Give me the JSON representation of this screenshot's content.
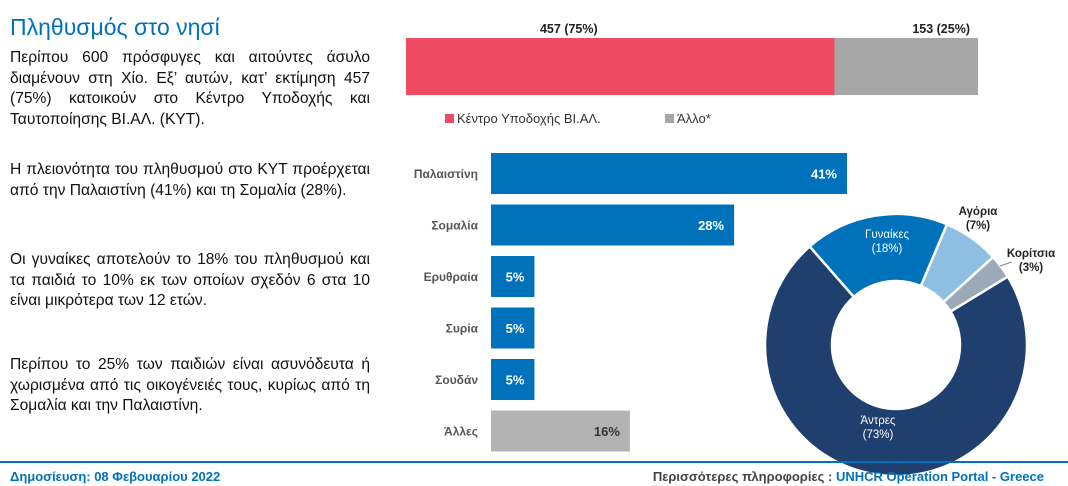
{
  "title": "Πληθυσμός στο νησί",
  "paragraphs": [
    "Περίπου 600 πρόσφυγες και αιτούντες άσυλο διαμένουν στη Χίο. Εξ’ αυτών, κατ’ εκτίμηση 457 (75%) κατοικούν στο Κέντρο Υποδοχής και Ταυτοποίησης ΒΙ.ΑΛ. (ΚΥΤ).",
    "Η πλειονότητα του πληθυσμού στο ΚΥΤ προέρχεται από την Παλαιστίνη (41%) και τη Σομαλία (28%).",
    "Οι γυναίκες αποτελούν το 18% του πληθυσμού και τα παιδιά το 10% εκ των οποίων σχεδόν 6 στα 10 είναι μικρότερα των 12 ετών.",
    "Περίπου το 25% των παιδιών είναι ασυνόδευτα ή χωρισμένα από τις οικογένειές τους, κυρίως από τη Σομαλία και την Παλαιστίνη."
  ],
  "footer": {
    "published": "Δημοσίευση: 08 Φεβουαρίου 2022",
    "more_info_label": "Περισσότερες πληροφορίες : ",
    "more_info_link": "UNHCR Operation Portal - Greece"
  },
  "chart_data": [
    {
      "type": "bar",
      "orientation": "horizontal-stacked",
      "title": "",
      "series": [
        {
          "name": "Κέντρο Υποδοχής ΒΙ.ΑΛ.",
          "value": 457,
          "percent": 75,
          "label": "457  (75%)",
          "color": "#ef4b62"
        },
        {
          "name": "Άλλο*",
          "value": 153,
          "percent": 25,
          "label": "153  (25%)",
          "color": "#a7a7a7"
        }
      ],
      "legend": [
        "Κέντρο Υποδοχής ΒΙ.ΑΛ.",
        "Άλλο*"
      ]
    },
    {
      "type": "bar",
      "orientation": "horizontal",
      "title": "",
      "categories": [
        "Παλαιστίνη",
        "Σομαλία",
        "Ερυθραία",
        "Συρία",
        "Σουδάν",
        "Άλλες"
      ],
      "values": [
        41,
        28,
        5,
        5,
        5,
        16
      ],
      "labels": [
        "41%",
        "28%",
        "5%",
        "5%",
        "5%",
        "16%"
      ],
      "colors": [
        "#0072bc",
        "#0072bc",
        "#0072bc",
        "#0072bc",
        "#0072bc",
        "#b3b3b3"
      ],
      "unit": "%"
    },
    {
      "type": "pie",
      "style": "donut",
      "slices": [
        {
          "name": "Γυναίκες",
          "value": 18,
          "label": "(18%)",
          "color": "#0072bc"
        },
        {
          "name": "Αγόρια",
          "value": 7,
          "label": "(7%)",
          "color": "#8ebfe2"
        },
        {
          "name": "Κορίτσια",
          "value": 3,
          "label": "(3%)",
          "color": "#9ca9b8"
        },
        {
          "name": "Άντρες",
          "value": 73,
          "label": "(73%)",
          "color": "#1f3f6e"
        }
      ]
    }
  ]
}
